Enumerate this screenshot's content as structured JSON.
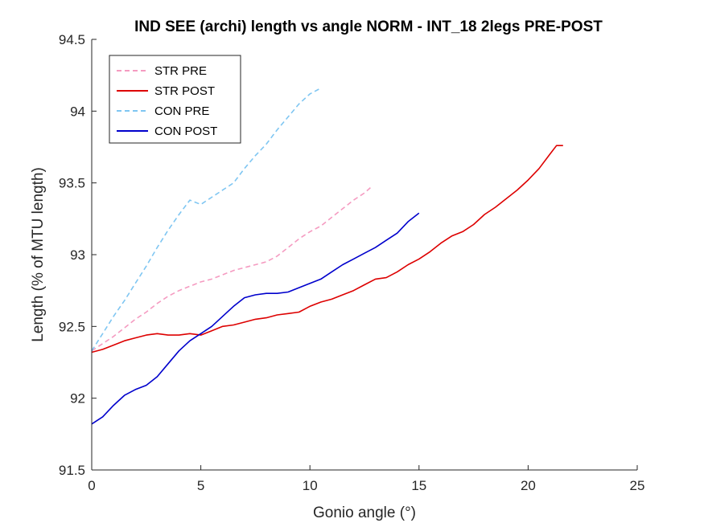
{
  "chart_data": {
    "type": "line",
    "title": "IND SEE (archi) length vs angle NORM - INT_18 2legs PRE-POST",
    "xlabel": "Gonio angle (°)",
    "ylabel": "Length (% of MTU length)",
    "xlim": [
      0,
      25
    ],
    "ylim": [
      91.5,
      94.5
    ],
    "xticks": [
      0,
      5,
      10,
      15,
      20,
      25
    ],
    "yticks": [
      91.5,
      92,
      92.5,
      93,
      93.5,
      94,
      94.5
    ],
    "xtick_labels": [
      "0",
      "5",
      "10",
      "15",
      "20",
      "25"
    ],
    "ytick_labels": [
      "91.5",
      "92",
      "92.5",
      "93",
      "93.5",
      "94",
      "94.5"
    ],
    "grid": false,
    "legend_position": "top-left",
    "series": [
      {
        "name": "STR PRE",
        "color": "#f59bc1",
        "dash": "dashed",
        "x": [
          0,
          0.5,
          1,
          1.5,
          2,
          2.5,
          3,
          3.5,
          4,
          4.5,
          5,
          5.5,
          6,
          6.5,
          7,
          7.5,
          8,
          8.5,
          9,
          9.5,
          10,
          10.5,
          11,
          11.5,
          12,
          12.5,
          12.8
        ],
        "y": [
          92.33,
          92.38,
          92.43,
          92.49,
          92.55,
          92.6,
          92.66,
          92.71,
          92.75,
          92.78,
          92.81,
          92.83,
          92.86,
          92.89,
          92.91,
          92.93,
          92.95,
          92.99,
          93.05,
          93.11,
          93.16,
          93.2,
          93.26,
          93.32,
          93.38,
          93.43,
          93.47
        ]
      },
      {
        "name": "STR POST",
        "color": "#dd0000",
        "dash": "solid",
        "x": [
          0,
          0.5,
          1,
          1.5,
          2,
          2.5,
          3,
          3.5,
          4,
          4.5,
          5,
          5.5,
          6,
          6.5,
          7,
          7.5,
          8,
          8.5,
          9,
          9.5,
          10,
          10.5,
          11,
          11.5,
          12,
          12.5,
          13,
          13.5,
          14,
          14.5,
          15,
          15.5,
          16,
          16.5,
          17,
          17.5,
          18,
          18.5,
          19,
          19.5,
          20,
          20.5,
          21,
          21.3,
          21.6
        ],
        "y": [
          92.32,
          92.34,
          92.37,
          92.4,
          92.42,
          92.44,
          92.45,
          92.44,
          92.44,
          92.45,
          92.44,
          92.47,
          92.5,
          92.51,
          92.53,
          92.55,
          92.56,
          92.58,
          92.59,
          92.6,
          92.64,
          92.67,
          92.69,
          92.72,
          92.75,
          92.79,
          92.83,
          92.84,
          92.88,
          92.93,
          92.97,
          93.02,
          93.08,
          93.13,
          93.16,
          93.21,
          93.28,
          93.33,
          93.39,
          93.45,
          93.52,
          93.6,
          93.7,
          93.76,
          93.76
        ]
      },
      {
        "name": "CON PRE",
        "color": "#7fc6f2",
        "dash": "dashed",
        "x": [
          0,
          0.5,
          1,
          1.5,
          2,
          2.5,
          3,
          3.5,
          4,
          4.5,
          5,
          5.5,
          6,
          6.5,
          7,
          7.5,
          8,
          8.5,
          9,
          9.5,
          10,
          10.5
        ],
        "y": [
          92.33,
          92.45,
          92.57,
          92.68,
          92.8,
          92.92,
          93.05,
          93.17,
          93.28,
          93.38,
          93.35,
          93.4,
          93.45,
          93.5,
          93.6,
          93.69,
          93.77,
          93.87,
          93.96,
          94.05,
          94.12,
          94.16
        ]
      },
      {
        "name": "CON POST",
        "color": "#0000cc",
        "dash": "solid",
        "x": [
          0,
          0.5,
          1,
          1.5,
          2,
          2.5,
          3,
          3.5,
          4,
          4.5,
          5,
          5.5,
          6,
          6.5,
          7,
          7.5,
          8,
          8.5,
          9,
          9.5,
          10,
          10.5,
          11,
          11.5,
          12,
          12.5,
          13,
          13.5,
          14,
          14.5,
          15
        ],
        "y": [
          91.82,
          91.87,
          91.95,
          92.02,
          92.06,
          92.09,
          92.15,
          92.24,
          92.33,
          92.4,
          92.45,
          92.5,
          92.57,
          92.64,
          92.7,
          92.72,
          92.73,
          92.73,
          92.74,
          92.77,
          92.8,
          92.83,
          92.88,
          92.93,
          92.97,
          93.01,
          93.05,
          93.1,
          93.15,
          93.23,
          93.29
        ]
      }
    ]
  }
}
